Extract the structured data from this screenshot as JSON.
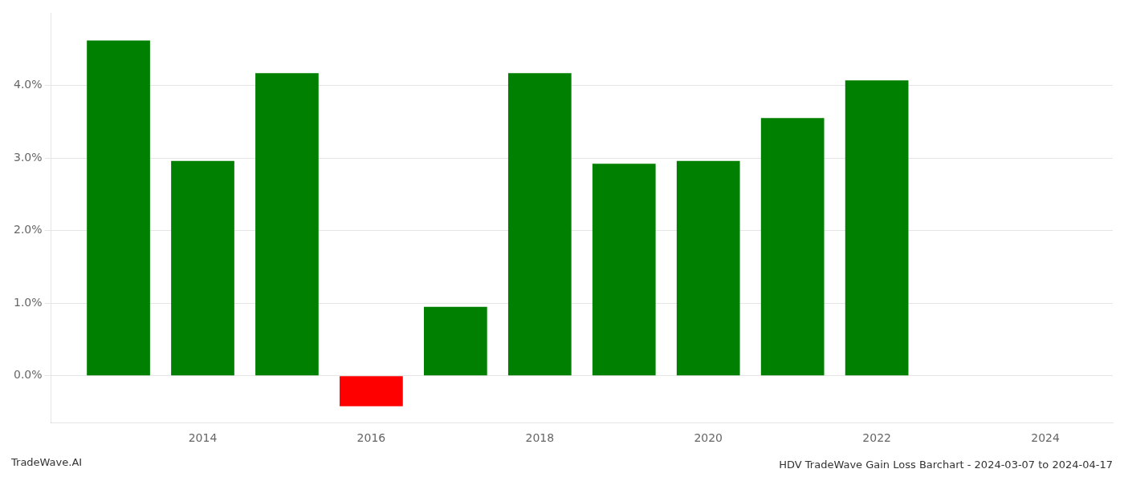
{
  "chart_data": {
    "type": "bar",
    "title": "HDV TradeWave Gain Loss Barchart - 2024-03-07 to 2024-04-17",
    "annotations": [
      "TradeWave.AI"
    ],
    "x": [
      2013,
      2014,
      2015,
      2016,
      2017,
      2018,
      2019,
      2020,
      2021,
      2022,
      2023
    ],
    "values": [
      4.62,
      2.96,
      4.17,
      -0.42,
      0.95,
      4.17,
      2.92,
      2.96,
      3.55,
      4.07,
      0.0
    ],
    "colors": [
      "#008000",
      "#008000",
      "#008000",
      "#ff0000",
      "#008000",
      "#008000",
      "#008000",
      "#008000",
      "#008000",
      "#008000",
      "#008000"
    ],
    "xlim": [
      2012.2,
      2024.8
    ],
    "xticks": [
      2014,
      2016,
      2018,
      2020,
      2022,
      2024
    ],
    "ylim": [
      -0.65,
      5.0
    ],
    "yticks": [
      {
        "value": 0.0,
        "label": "0.0%"
      },
      {
        "value": 1.0,
        "label": "1.0%"
      },
      {
        "value": 2.0,
        "label": "2.0%"
      },
      {
        "value": 3.0,
        "label": "3.0%"
      },
      {
        "value": 4.0,
        "label": "4.0%"
      }
    ],
    "grid": true
  }
}
